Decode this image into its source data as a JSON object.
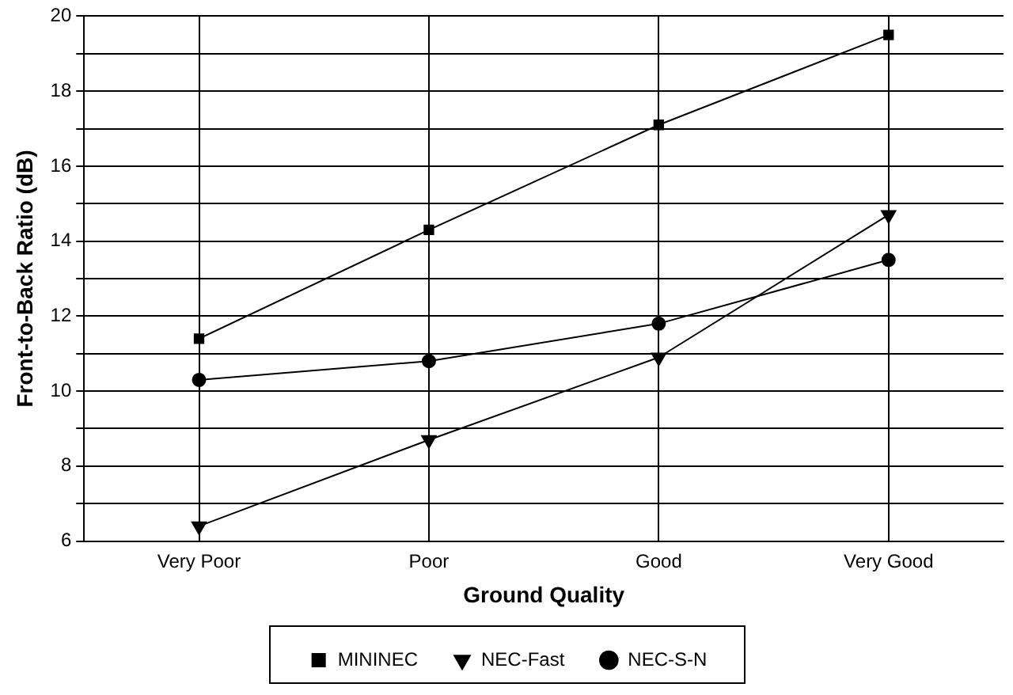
{
  "chart_data": {
    "type": "line",
    "xlabel": "Ground Quality",
    "ylabel": "Front-to-Back Ratio (dB)",
    "categories": [
      "Very Poor",
      "Poor",
      "Good",
      "Very Good"
    ],
    "series": [
      {
        "name": "MININEC",
        "color": "#000000",
        "marker": "square",
        "values": [
          11.4,
          14.3,
          17.1,
          19.5
        ]
      },
      {
        "name": "NEC-Fast",
        "color": "#000000",
        "marker": "triangle",
        "values": [
          6.4,
          8.7,
          10.9,
          14.7
        ]
      },
      {
        "name": "NEC-S-N",
        "color": "#000000",
        "marker": "circle",
        "values": [
          10.3,
          10.8,
          11.8,
          13.5
        ]
      }
    ],
    "ylim": [
      6,
      20
    ],
    "yticks": [
      6,
      {
        "value": 7,
        "label": null
      },
      8,
      {
        "value": 9,
        "label": null
      },
      10,
      {
        "value": 11,
        "label": null
      },
      12,
      {
        "value": 13,
        "label": null
      },
      14,
      {
        "value": 15,
        "label": null
      },
      16,
      {
        "value": 17,
        "label": null
      },
      18,
      {
        "value": 19,
        "label": null
      },
      20
    ],
    "grid": true,
    "legend": "bottom",
    "line_style": "solid"
  }
}
